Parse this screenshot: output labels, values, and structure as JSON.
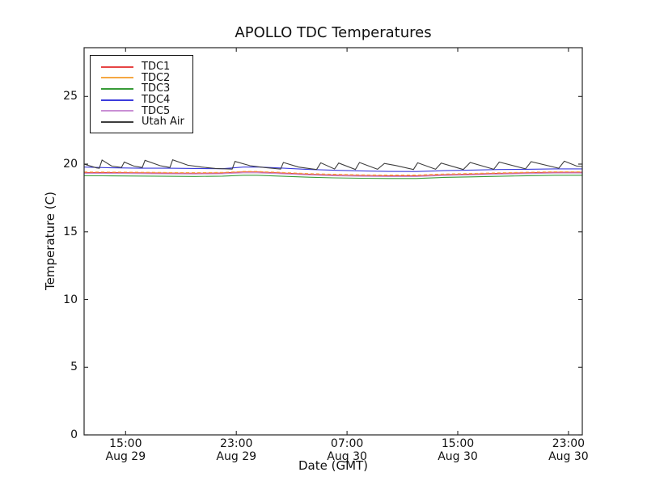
{
  "colors": {
    "background": "#ffffff",
    "frame": "#262626",
    "text": "#111111"
  },
  "chart_data": {
    "type": "line",
    "title": "APOLLO TDC Temperatures",
    "xlabel": "Date (GMT)",
    "ylabel": "Temperature (C)",
    "grid": false,
    "legend_position": "upper left",
    "x_range": [
      0,
      36
    ],
    "y_range": [
      0,
      28.6
    ],
    "y_ticks": [
      0,
      5,
      10,
      15,
      20,
      25
    ],
    "x_ticks": [
      {
        "t": 3,
        "time": "15:00",
        "date": "Aug 29"
      },
      {
        "t": 11,
        "time": "23:00",
        "date": "Aug 29"
      },
      {
        "t": 19,
        "time": "07:00",
        "date": "Aug 30"
      },
      {
        "t": 27,
        "time": "15:00",
        "date": "Aug 30"
      },
      {
        "t": 35,
        "time": "23:00",
        "date": "Aug 30"
      }
    ],
    "series": [
      {
        "name": "TDC1",
        "color": "#e64545",
        "dash": null,
        "points": [
          [
            0,
            19.38
          ],
          [
            2,
            19.37
          ],
          [
            4,
            19.36
          ],
          [
            6,
            19.34
          ],
          [
            8,
            19.33
          ],
          [
            10,
            19.35
          ],
          [
            11.5,
            19.42
          ],
          [
            12.5,
            19.42
          ],
          [
            14,
            19.36
          ],
          [
            16,
            19.27
          ],
          [
            18,
            19.2
          ],
          [
            20,
            19.16
          ],
          [
            22,
            19.14
          ],
          [
            24,
            19.14
          ],
          [
            25.5,
            19.2
          ],
          [
            26,
            19.22
          ],
          [
            28,
            19.27
          ],
          [
            30,
            19.32
          ],
          [
            32,
            19.36
          ],
          [
            34,
            19.4
          ],
          [
            36,
            19.4
          ]
        ]
      },
      {
        "name": "TDC2",
        "color": "#f5a742",
        "dash": "4 3",
        "points": [
          [
            0,
            19.42
          ],
          [
            2,
            19.41
          ],
          [
            4,
            19.4
          ],
          [
            6,
            19.38
          ],
          [
            8,
            19.37
          ],
          [
            10,
            19.39
          ],
          [
            11.5,
            19.46
          ],
          [
            12.5,
            19.46
          ],
          [
            14,
            19.4
          ],
          [
            16,
            19.31
          ],
          [
            18,
            19.25
          ],
          [
            20,
            19.21
          ],
          [
            22,
            19.19
          ],
          [
            24,
            19.19
          ],
          [
            25.5,
            19.25
          ],
          [
            26,
            19.27
          ],
          [
            28,
            19.31
          ],
          [
            30,
            19.36
          ],
          [
            32,
            19.4
          ],
          [
            34,
            19.44
          ],
          [
            36,
            19.44
          ]
        ]
      },
      {
        "name": "TDC3",
        "color": "#379b37",
        "dash": null,
        "points": [
          [
            0,
            19.15
          ],
          [
            2,
            19.13
          ],
          [
            4,
            19.12
          ],
          [
            6,
            19.1
          ],
          [
            8,
            19.09
          ],
          [
            10,
            19.11
          ],
          [
            11.5,
            19.18
          ],
          [
            12.5,
            19.18
          ],
          [
            14,
            19.12
          ],
          [
            16,
            19.04
          ],
          [
            18,
            18.99
          ],
          [
            20,
            18.96
          ],
          [
            22,
            18.94
          ],
          [
            24,
            18.94
          ],
          [
            25.5,
            19.0
          ],
          [
            26,
            19.02
          ],
          [
            28,
            19.06
          ],
          [
            30,
            19.1
          ],
          [
            32,
            19.14
          ],
          [
            34,
            19.18
          ],
          [
            36,
            19.18
          ]
        ]
      },
      {
        "name": "TDC4",
        "color": "#3c3cdc",
        "dash": null,
        "points": [
          [
            0,
            19.78
          ],
          [
            2,
            19.73
          ],
          [
            4,
            19.7
          ],
          [
            6,
            19.7
          ],
          [
            8,
            19.68
          ],
          [
            10,
            19.66
          ],
          [
            11.5,
            19.78
          ],
          [
            12.5,
            19.79
          ],
          [
            14,
            19.72
          ],
          [
            16,
            19.62
          ],
          [
            18,
            19.55
          ],
          [
            20,
            19.5
          ],
          [
            22,
            19.46
          ],
          [
            24,
            19.45
          ],
          [
            25.5,
            19.5
          ],
          [
            26,
            19.52
          ],
          [
            28,
            19.56
          ],
          [
            30,
            19.6
          ],
          [
            32,
            19.62
          ],
          [
            34,
            19.65
          ],
          [
            36,
            19.65
          ]
        ]
      },
      {
        "name": "TDC5",
        "color": "#c98fd4",
        "dash": null,
        "points": [
          [
            0,
            19.32
          ],
          [
            2,
            19.31
          ],
          [
            4,
            19.3
          ],
          [
            6,
            19.28
          ],
          [
            8,
            19.27
          ],
          [
            10,
            19.29
          ],
          [
            11.5,
            19.36
          ],
          [
            12.5,
            19.36
          ],
          [
            14,
            19.3
          ],
          [
            16,
            19.21
          ],
          [
            18,
            19.14
          ],
          [
            20,
            19.1
          ],
          [
            22,
            19.08
          ],
          [
            24,
            19.08
          ],
          [
            25.5,
            19.14
          ],
          [
            26,
            19.16
          ],
          [
            28,
            19.2
          ],
          [
            30,
            19.26
          ],
          [
            32,
            19.3
          ],
          [
            34,
            19.34
          ],
          [
            36,
            19.34
          ]
        ]
      },
      {
        "name": "Utah Air",
        "color": "#3d3d3d",
        "dash": null,
        "points": [
          [
            0,
            20.0
          ],
          [
            0.9,
            19.72
          ],
          [
            1.1,
            19.7
          ],
          [
            1.3,
            20.3
          ],
          [
            2.0,
            19.85
          ],
          [
            2.7,
            19.75
          ],
          [
            2.9,
            20.15
          ],
          [
            3.6,
            19.85
          ],
          [
            4.2,
            19.75
          ],
          [
            4.4,
            20.28
          ],
          [
            5.5,
            19.88
          ],
          [
            6.2,
            19.75
          ],
          [
            6.4,
            20.32
          ],
          [
            7.5,
            19.92
          ],
          [
            8.5,
            19.78
          ],
          [
            9.5,
            19.68
          ],
          [
            10.7,
            19.63
          ],
          [
            10.9,
            20.2
          ],
          [
            12.0,
            19.88
          ],
          [
            13.0,
            19.75
          ],
          [
            14.2,
            19.63
          ],
          [
            14.4,
            20.12
          ],
          [
            15.5,
            19.78
          ],
          [
            16.8,
            19.6
          ],
          [
            17.1,
            20.1
          ],
          [
            18.1,
            19.64
          ],
          [
            18.4,
            20.08
          ],
          [
            19.6,
            19.6
          ],
          [
            19.9,
            20.12
          ],
          [
            21.2,
            19.62
          ],
          [
            21.7,
            20.05
          ],
          [
            22.5,
            19.9
          ],
          [
            23.8,
            19.6
          ],
          [
            24.1,
            20.1
          ],
          [
            25.4,
            19.62
          ],
          [
            25.8,
            20.08
          ],
          [
            27.4,
            19.6
          ],
          [
            27.9,
            20.12
          ],
          [
            29.6,
            19.62
          ],
          [
            30.0,
            20.15
          ],
          [
            31.9,
            19.65
          ],
          [
            32.3,
            20.18
          ],
          [
            34.3,
            19.7
          ],
          [
            34.7,
            20.22
          ],
          [
            35.6,
            19.85
          ],
          [
            36,
            19.82
          ]
        ]
      }
    ]
  }
}
